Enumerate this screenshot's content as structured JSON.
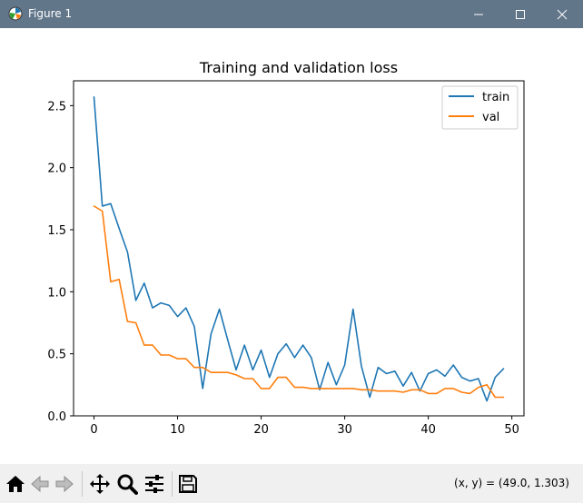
{
  "window": {
    "title": "Figure 1"
  },
  "colors": {
    "titlebar": "#62768a",
    "train": "#1f77b4",
    "val": "#ff7f0e"
  },
  "toolbar": {
    "coords_text": "(x, y) = (49.0, 1.303)",
    "icons": [
      "home-icon",
      "back-icon",
      "forward-icon",
      "pan-icon",
      "zoom-icon",
      "configure-subplots-icon",
      "save-icon"
    ]
  },
  "chart_data": {
    "type": "line",
    "title": "Training and validation loss",
    "xlabel": "",
    "ylabel": "",
    "xlim": [
      -2.45,
      51.45
    ],
    "ylim": [
      0,
      2.7
    ],
    "xticks": [
      0,
      10,
      20,
      30,
      40,
      50
    ],
    "yticks": [
      0.0,
      0.5,
      1.0,
      1.5,
      2.0,
      2.5
    ],
    "ytick_labels": [
      "0.0",
      "0.5",
      "1.0",
      "1.5",
      "2.0",
      "2.5"
    ],
    "grid": false,
    "legend": "top-right",
    "x": [
      0,
      1,
      2,
      3,
      4,
      5,
      6,
      7,
      8,
      9,
      10,
      11,
      12,
      13,
      14,
      15,
      16,
      17,
      18,
      19,
      20,
      21,
      22,
      23,
      24,
      25,
      26,
      27,
      28,
      29,
      30,
      31,
      32,
      33,
      34,
      35,
      36,
      37,
      38,
      39,
      40,
      41,
      42,
      43,
      44,
      45,
      46,
      47,
      48,
      49
    ],
    "series": [
      {
        "name": "train",
        "values": [
          2.57,
          1.69,
          1.71,
          1.51,
          1.32,
          0.93,
          1.07,
          0.87,
          0.91,
          0.89,
          0.8,
          0.87,
          0.72,
          0.22,
          0.66,
          0.86,
          0.61,
          0.37,
          0.57,
          0.37,
          0.53,
          0.31,
          0.5,
          0.58,
          0.47,
          0.57,
          0.47,
          0.21,
          0.43,
          0.25,
          0.41,
          0.86,
          0.4,
          0.15,
          0.39,
          0.34,
          0.36,
          0.24,
          0.35,
          0.2,
          0.34,
          0.37,
          0.32,
          0.41,
          0.31,
          0.28,
          0.3,
          0.12,
          0.31,
          0.38
        ]
      },
      {
        "name": "val",
        "values": [
          1.69,
          1.65,
          1.08,
          1.1,
          0.76,
          0.75,
          0.57,
          0.57,
          0.49,
          0.49,
          0.46,
          0.46,
          0.39,
          0.39,
          0.35,
          0.35,
          0.35,
          0.33,
          0.3,
          0.3,
          0.22,
          0.22,
          0.31,
          0.31,
          0.23,
          0.23,
          0.22,
          0.22,
          0.22,
          0.22,
          0.22,
          0.22,
          0.21,
          0.21,
          0.2,
          0.2,
          0.2,
          0.19,
          0.21,
          0.21,
          0.18,
          0.18,
          0.22,
          0.22,
          0.19,
          0.18,
          0.23,
          0.25,
          0.15,
          0.15
        ]
      }
    ]
  }
}
